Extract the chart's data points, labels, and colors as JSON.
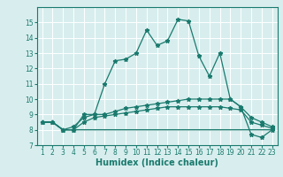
{
  "x": [
    1,
    2,
    3,
    4,
    5,
    6,
    7,
    8,
    9,
    10,
    11,
    12,
    13,
    14,
    15,
    16,
    17,
    18,
    19,
    20,
    21,
    22,
    23
  ],
  "line1": [
    8.5,
    8.5,
    8.0,
    8.0,
    9.0,
    9.0,
    11.0,
    12.5,
    12.6,
    13.0,
    14.5,
    13.5,
    13.8,
    15.2,
    15.1,
    12.8,
    11.5,
    13.0,
    10.0,
    9.5,
    7.7,
    7.5,
    8.0
  ],
  "line2": [
    8.5,
    8.5,
    8.0,
    8.2,
    8.8,
    9.0,
    9.0,
    9.2,
    9.4,
    9.5,
    9.6,
    9.7,
    9.8,
    9.9,
    10.0,
    10.0,
    10.0,
    10.0,
    10.0,
    9.5,
    8.8,
    8.5,
    8.2
  ],
  "line3": [
    8.5,
    8.5,
    8.0,
    8.0,
    8.5,
    8.8,
    8.9,
    9.0,
    9.1,
    9.2,
    9.3,
    9.4,
    9.5,
    9.5,
    9.5,
    9.5,
    9.5,
    9.5,
    9.4,
    9.3,
    8.5,
    8.3,
    8.1
  ],
  "line4": [
    8.5,
    8.5,
    8.0,
    8.0,
    8.0,
    8.0,
    8.0,
    8.0,
    8.0,
    8.0,
    8.0,
    8.0,
    8.0,
    8.0,
    8.0,
    8.0,
    8.0,
    8.0,
    8.0,
    8.0,
    8.0,
    8.0,
    8.0
  ],
  "line_color": "#1a7a6e",
  "bg_color": "#d8eeee",
  "grid_color": "#ffffff",
  "xlabel": "Humidex (Indice chaleur)",
  "ylim": [
    7,
    16
  ],
  "xlim": [
    0.5,
    23.5
  ],
  "yticks": [
    7,
    8,
    9,
    10,
    11,
    12,
    13,
    14,
    15
  ],
  "xticks": [
    1,
    2,
    3,
    4,
    5,
    6,
    7,
    8,
    9,
    10,
    11,
    12,
    13,
    14,
    15,
    16,
    17,
    18,
    19,
    20,
    21,
    22,
    23
  ],
  "marker": "*",
  "markersize": 3.5,
  "tick_fontsize": 5.5,
  "xlabel_fontsize": 7
}
